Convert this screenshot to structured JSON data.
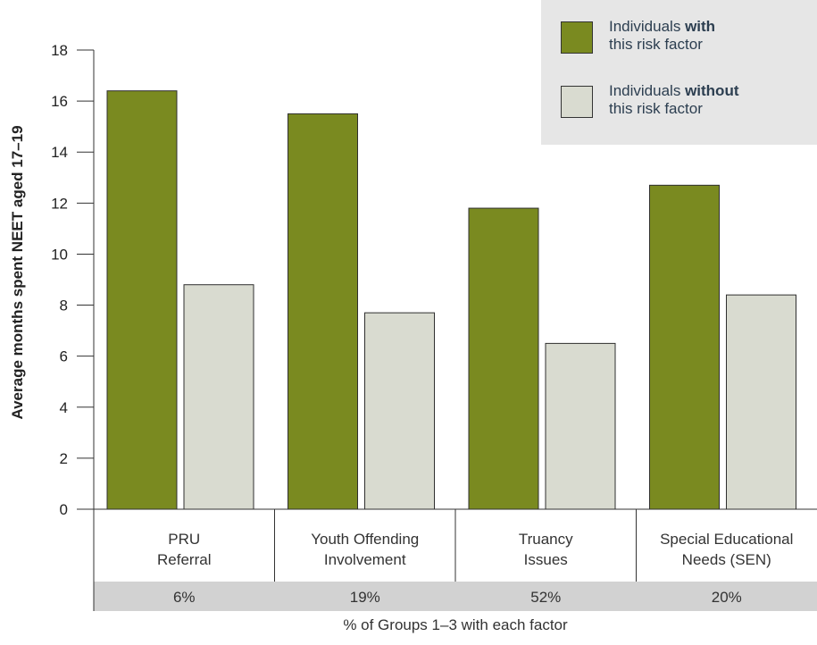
{
  "chart_data": {
    "type": "bar",
    "ylabel": "Average months spent NEET aged 17–19",
    "ylim": [
      0,
      18
    ],
    "yticks": [
      "0",
      "2",
      "4",
      "6",
      "8",
      "10",
      "12",
      "14",
      "16",
      "18"
    ],
    "categories": [
      [
        "PRU",
        "Referral"
      ],
      [
        "Youth Offending",
        "Involvement"
      ],
      [
        "Truancy",
        "Issues"
      ],
      [
        "Special Educational",
        "Needs (SEN)"
      ]
    ],
    "category_shares": [
      "6%",
      "19%",
      "52%",
      "20%"
    ],
    "share_label": "% of Groups 1–3 with each factor",
    "series": [
      {
        "name": "Individuals with this risk factor",
        "color": "#7a8a20",
        "values": [
          16.4,
          15.5,
          11.8,
          12.7
        ]
      },
      {
        "name": "Individuals without this risk factor",
        "color": "#d9dbd0",
        "values": [
          8.8,
          7.7,
          6.5,
          8.4
        ]
      }
    ],
    "legend_placement": "top-right",
    "grid": false
  },
  "legend": {
    "with": {
      "pre": "Individuals ",
      "bold": "with",
      "post": "this risk factor"
    },
    "without": {
      "pre": "Individuals ",
      "bold": "without",
      "post": "this risk factor"
    }
  }
}
